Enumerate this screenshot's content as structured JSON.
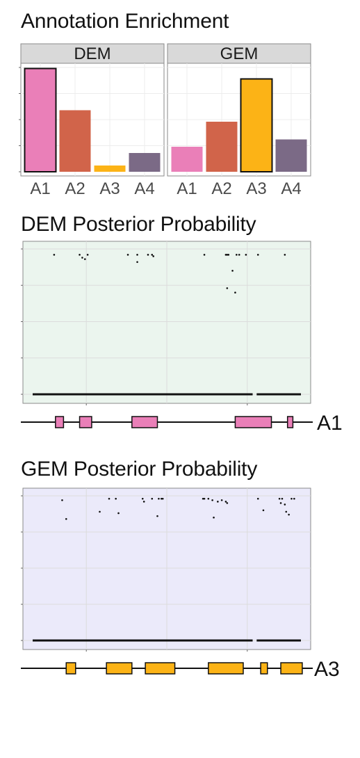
{
  "headings": {
    "enrichment": "Annotation Enrichment",
    "dem": "DEM Posterior Probability",
    "gem": "GEM Posterior Probability"
  },
  "colors": {
    "A1": "#ea7fb8",
    "A2": "#d1644a",
    "A3": "#fcb316",
    "A4": "#7b6a86",
    "dem_panel": "#ebf5ee",
    "gem_panel": "#ebeafa",
    "strip": "#d9d9d9"
  },
  "chart_data": [
    {
      "type": "bar",
      "facets": [
        "DEM",
        "GEM"
      ],
      "categories": [
        "A1",
        "A2",
        "A3",
        "A4"
      ],
      "ylim": [
        0,
        1
      ],
      "series": [
        {
          "name": "DEM",
          "values": [
            0.99,
            0.59,
            0.06,
            0.18
          ],
          "highlighted": [
            "A1"
          ]
        },
        {
          "name": "GEM",
          "values": [
            0.24,
            0.48,
            0.89,
            0.31
          ],
          "highlighted": [
            "A3"
          ]
        }
      ],
      "grid": true
    },
    {
      "type": "scatter",
      "title": "DEM Posterior Probability",
      "xlim": [
        0,
        100
      ],
      "ylim": [
        0,
        1
      ],
      "grid": true,
      "points": [
        [
          8,
          0.96
        ],
        [
          17.5,
          0.96
        ],
        [
          18.5,
          0.94
        ],
        [
          19.5,
          0.93
        ],
        [
          20.5,
          0.96
        ],
        [
          35.5,
          0.96
        ],
        [
          39,
          0.96
        ],
        [
          39,
          0.91
        ],
        [
          43,
          0.96
        ],
        [
          44.5,
          0.96
        ],
        [
          45,
          0.95
        ],
        [
          64,
          0.96
        ],
        [
          72,
          0.96
        ],
        [
          72.5,
          0.96
        ],
        [
          73,
          0.96
        ],
        [
          76,
          0.96
        ],
        [
          77,
          0.96
        ],
        [
          79.5,
          0.96
        ],
        [
          84,
          0.96
        ],
        [
          74.5,
          0.85
        ],
        [
          72.5,
          0.73
        ],
        [
          75.5,
          0.7
        ],
        [
          94,
          0.96
        ],
        [
          0,
          0
        ],
        [
          10,
          0
        ],
        [
          20,
          0
        ],
        [
          30,
          0
        ],
        [
          40,
          0
        ],
        [
          50,
          0
        ],
        [
          60,
          0
        ],
        [
          70,
          0
        ],
        [
          79,
          0
        ],
        [
          83,
          0
        ],
        [
          90,
          0
        ],
        [
          100,
          0
        ]
      ],
      "gene_track": {
        "label": "A1",
        "exons": [
          [
            8.5,
            11.5
          ],
          [
            17.5,
            22
          ],
          [
            37,
            46.5
          ],
          [
            75.5,
            89
          ],
          [
            95,
            97
          ]
        ]
      }
    },
    {
      "type": "scatter",
      "title": "GEM Posterior Probability",
      "xlim": [
        0,
        100
      ],
      "ylim": [
        0,
        1
      ],
      "grid": true,
      "points": [
        [
          11,
          0.97
        ],
        [
          12.5,
          0.84
        ],
        [
          25,
          0.89
        ],
        [
          28.5,
          0.98
        ],
        [
          31,
          0.98
        ],
        [
          32,
          0.88
        ],
        [
          41,
          0.98
        ],
        [
          41.5,
          0.96
        ],
        [
          44.5,
          0.98
        ],
        [
          47,
          0.98
        ],
        [
          48,
          0.98
        ],
        [
          48.5,
          0.98
        ],
        [
          46.5,
          0.86
        ],
        [
          63.5,
          0.98
        ],
        [
          64,
          0.98
        ],
        [
          65.5,
          0.98
        ],
        [
          67,
          0.97
        ],
        [
          69,
          0.96
        ],
        [
          70.5,
          0.97
        ],
        [
          72,
          0.96
        ],
        [
          72.5,
          0.95
        ],
        [
          67.5,
          0.85
        ],
        [
          84,
          0.98
        ],
        [
          86,
          0.9
        ],
        [
          92,
          0.98
        ],
        [
          93,
          0.98
        ],
        [
          92.5,
          0.95
        ],
        [
          94,
          0.94
        ],
        [
          96.5,
          0.98
        ],
        [
          97.5,
          0.98
        ],
        [
          94.5,
          0.89
        ],
        [
          95.5,
          0.87
        ],
        [
          0,
          0
        ],
        [
          10,
          0
        ],
        [
          20,
          0
        ],
        [
          30,
          0
        ],
        [
          40,
          0
        ],
        [
          50,
          0
        ],
        [
          60,
          0
        ],
        [
          65,
          0
        ],
        [
          70,
          0
        ],
        [
          80,
          0
        ],
        [
          83,
          0
        ],
        [
          90,
          0
        ],
        [
          100,
          0
        ]
      ],
      "gene_track": {
        "label": "A3",
        "exons": [
          [
            12.5,
            16
          ],
          [
            27.5,
            37
          ],
          [
            42,
            53
          ],
          [
            65.5,
            78.5
          ],
          [
            85,
            87.5
          ],
          [
            92.5,
            100.5
          ]
        ]
      }
    }
  ]
}
